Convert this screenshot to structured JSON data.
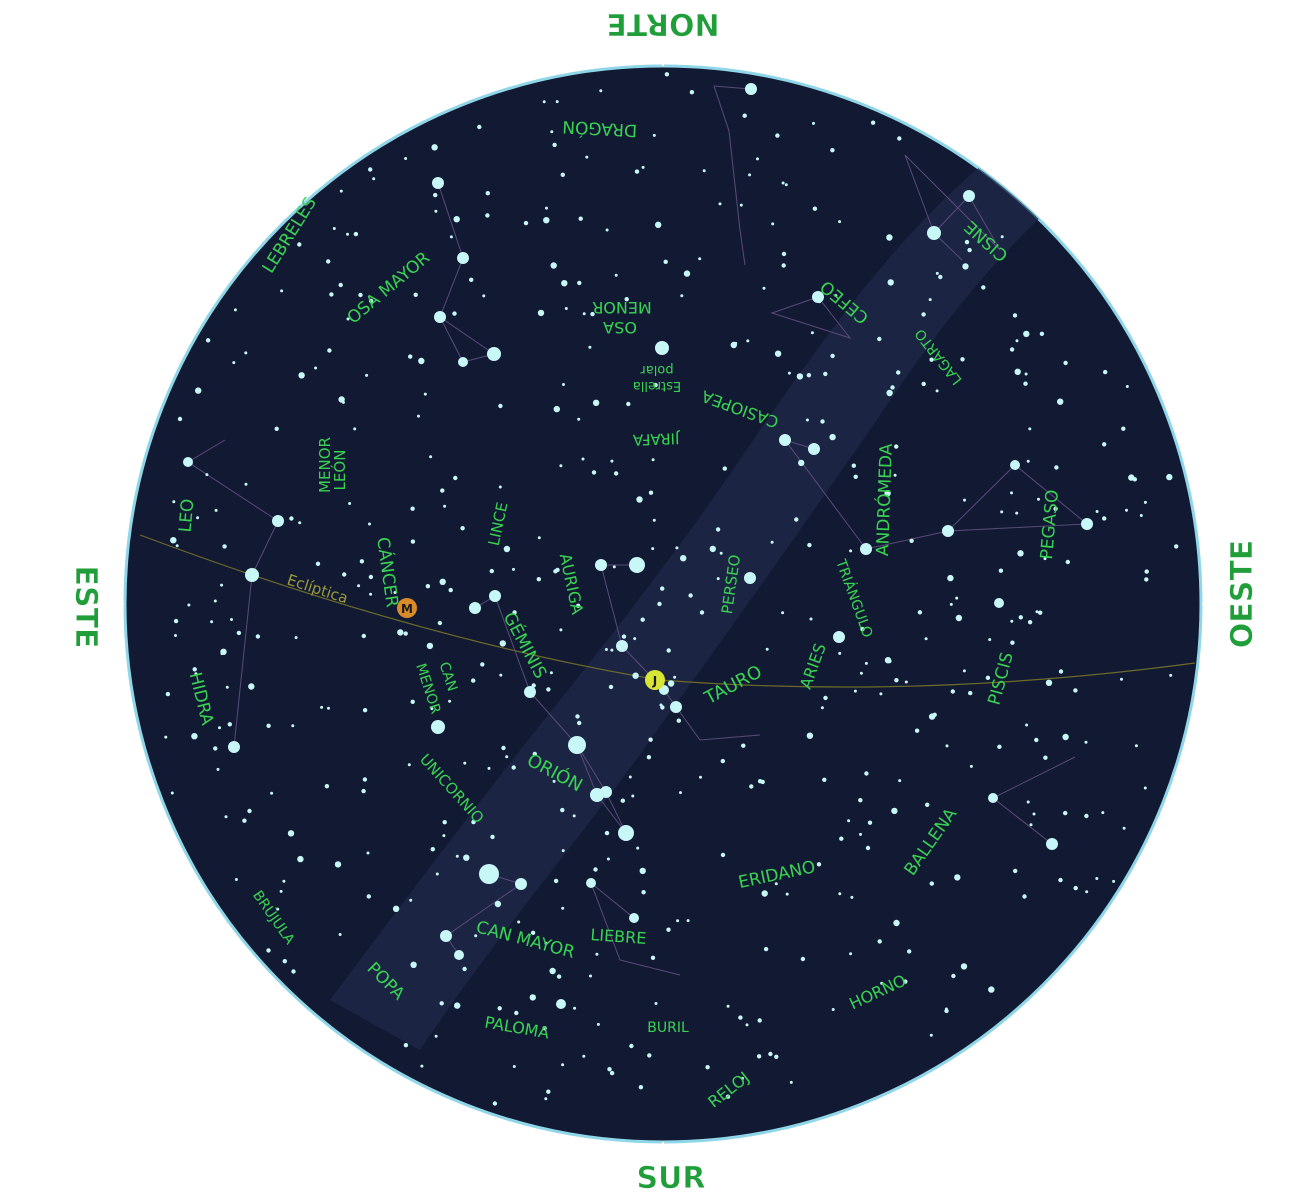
{
  "compass": {
    "north": "NORTE",
    "south": "SUR",
    "east": "ESTE",
    "west": "OESTE"
  },
  "ecliptic_label": "Eclíptica",
  "polaris_label": [
    "Estrella",
    "polar"
  ],
  "constellations": [
    {
      "key": "draco",
      "text": "DRAGÓN"
    },
    {
      "key": "cygnus",
      "text": "CISNE"
    },
    {
      "key": "canes-venatici",
      "text": "LEBRELES"
    },
    {
      "key": "ursa-major",
      "text": "OSA MAYOR"
    },
    {
      "key": "ursa-minor-1",
      "text": "OSA"
    },
    {
      "key": "ursa-minor-2",
      "text": "MENOR"
    },
    {
      "key": "cepheus",
      "text": "CEFEO"
    },
    {
      "key": "lacerta",
      "text": "LAGARTO"
    },
    {
      "key": "cassiopeia",
      "text": "CASIOPEA"
    },
    {
      "key": "camelopardalis",
      "text": "JIRAFA"
    },
    {
      "key": "leo-minor-1",
      "text": "LEÓN"
    },
    {
      "key": "leo-minor-2",
      "text": "MENOR"
    },
    {
      "key": "lynx",
      "text": "LINCE"
    },
    {
      "key": "leo",
      "text": "LEO"
    },
    {
      "key": "cancer",
      "text": "CÁNCER"
    },
    {
      "key": "auriga",
      "text": "AURIGA"
    },
    {
      "key": "perseus",
      "text": "PERSEO"
    },
    {
      "key": "andromeda",
      "text": "ANDRÓMEDA"
    },
    {
      "key": "triangulum",
      "text": "TRIÁNGULO"
    },
    {
      "key": "pegasus",
      "text": "PEGASO"
    },
    {
      "key": "gemini",
      "text": "GÉMINIS"
    },
    {
      "key": "aries",
      "text": "ARIES"
    },
    {
      "key": "taurus",
      "text": "TAURO"
    },
    {
      "key": "pisces",
      "text": "PISCIS"
    },
    {
      "key": "canis-minor-1",
      "text": "CAN"
    },
    {
      "key": "canis-minor-2",
      "text": "MENOR"
    },
    {
      "key": "hydra",
      "text": "HIDRA"
    },
    {
      "key": "orion",
      "text": "ORIÓN"
    },
    {
      "key": "monoceros",
      "text": "UNICORNIO"
    },
    {
      "key": "eridanus",
      "text": "ERIDANO"
    },
    {
      "key": "cetus",
      "text": "BALLENA"
    },
    {
      "key": "pyxis",
      "text": "BRÚJULA"
    },
    {
      "key": "canis-major",
      "text": "CAN MAYOR"
    },
    {
      "key": "lepus",
      "text": "LIEBRE"
    },
    {
      "key": "puppis",
      "text": "POPA"
    },
    {
      "key": "fornax",
      "text": "HORNO"
    },
    {
      "key": "columba",
      "text": "PALOMA"
    },
    {
      "key": "caelum",
      "text": "BURIL"
    },
    {
      "key": "horologium",
      "text": "RELOJ"
    }
  ],
  "planets": [
    {
      "symbol": "M",
      "color": "#d98b2b"
    },
    {
      "symbol": "J",
      "color": "#d7e635"
    }
  ],
  "colors": {
    "sky": "#121a33",
    "milky_way": "#1f2a4a",
    "rim": "#8fd6e8",
    "star": "#c8f7f7",
    "constellation_line": "#5a4a7a",
    "ecliptic": "#6d6a2a",
    "label": "#39d353",
    "cardinal": "#1f9e3a"
  }
}
